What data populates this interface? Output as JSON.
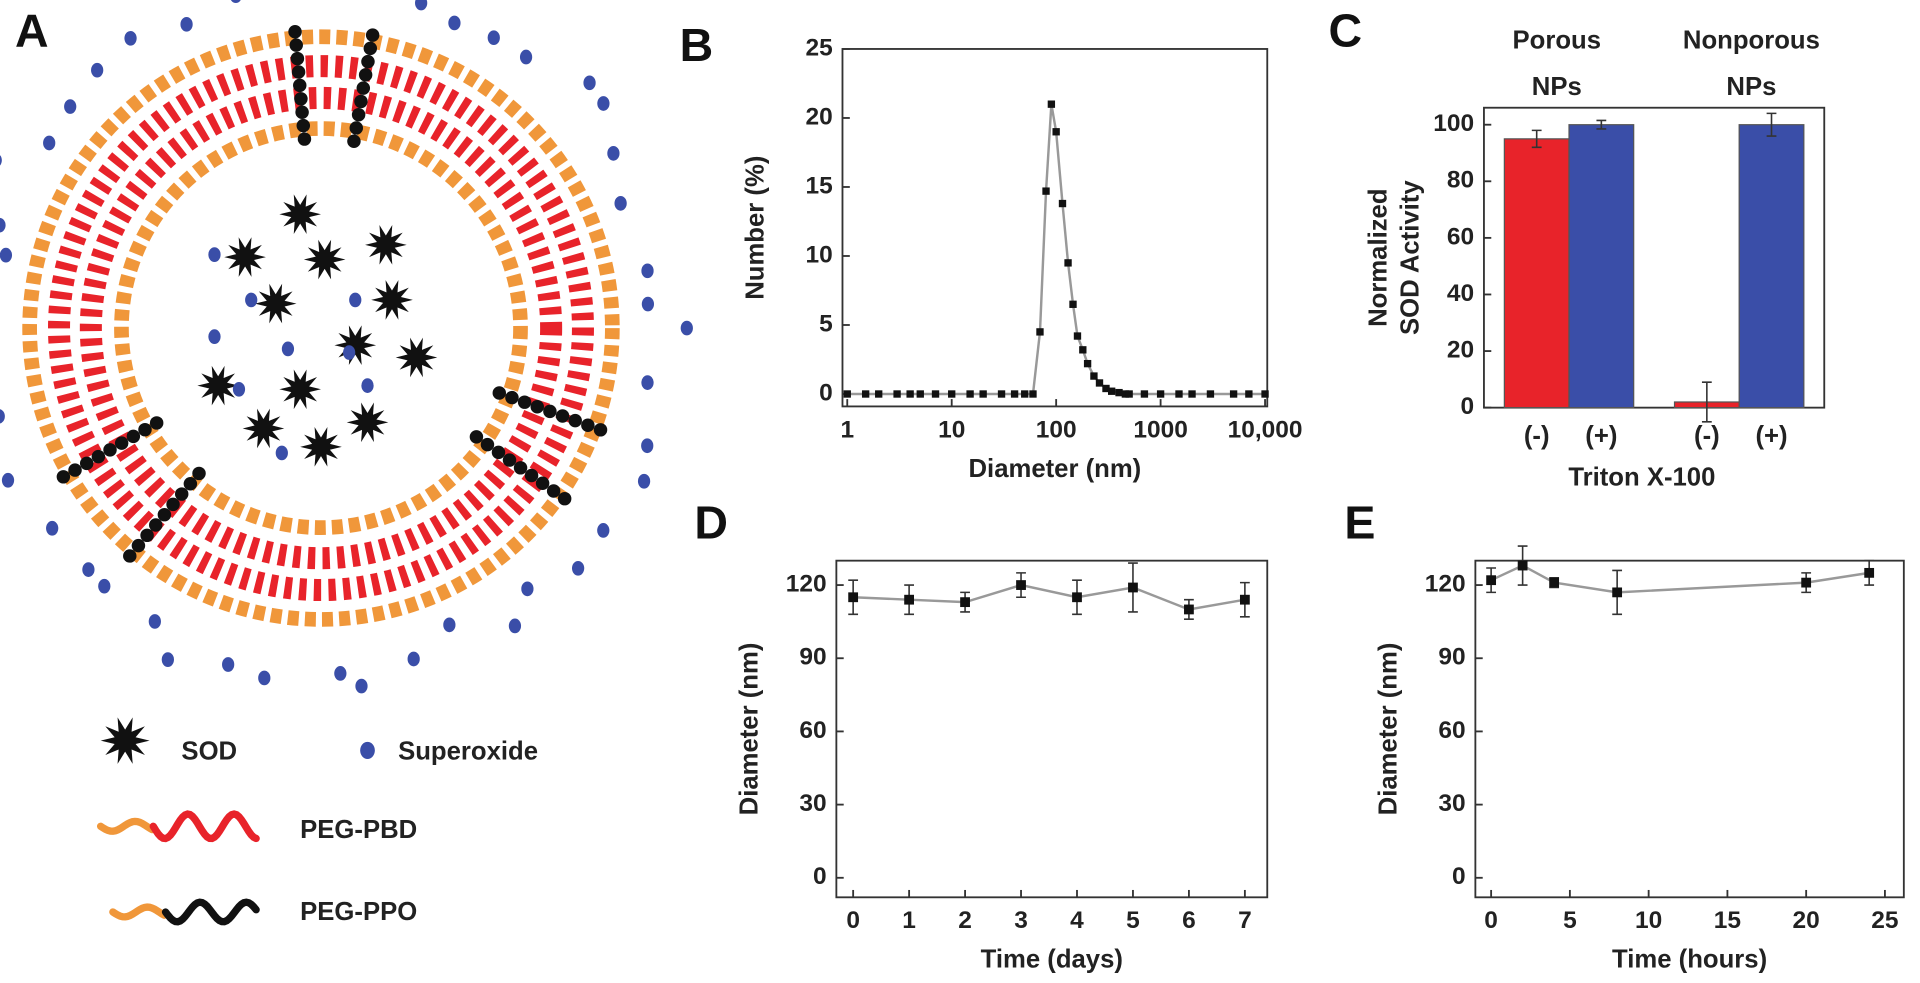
{
  "panel_labels": [
    "A",
    "B",
    "C",
    "D",
    "E"
  ],
  "diagram": {
    "legend": [
      "SOD",
      "Superoxide",
      "PEG-PBD",
      "PEG-PPO"
    ]
  },
  "chart_data": [
    {
      "type": "line",
      "xscale": "log",
      "color": "#999999",
      "marker_color": "#111111",
      "x": [
        1,
        1.5,
        2,
        3,
        4,
        5,
        7,
        10,
        15,
        20,
        30,
        40,
        50,
        60,
        70,
        80,
        90,
        100,
        115,
        130,
        145,
        160,
        180,
        200,
        230,
        260,
        300,
        340,
        400,
        460,
        500,
        700,
        1000,
        1500,
        2000,
        3000,
        5000,
        7000,
        10000
      ],
      "values": [
        0,
        0,
        0,
        0,
        0,
        0,
        0,
        0,
        0,
        0,
        0,
        0,
        0,
        0,
        4.5,
        14.7,
        21,
        19,
        13.8,
        9.5,
        6.5,
        4.2,
        3.2,
        2.2,
        1.3,
        0.8,
        0.4,
        0.2,
        0.1,
        0,
        0,
        0,
        0,
        0,
        0,
        0,
        0,
        0,
        0
      ],
      "xlim": [
        0.9,
        10500
      ],
      "xticks": [
        1,
        10,
        100,
        1000,
        {
          "value": 10000,
          "label": "10,000"
        }
      ],
      "ylim": [
        -0.9,
        25
      ],
      "yticks": [
        0,
        5,
        10,
        15,
        20,
        25
      ],
      "xlabel": "Diameter (nm)",
      "ylabel": "Number (%)"
    },
    {
      "type": "bar",
      "group_labels": [
        [
          "Porous",
          "NPs"
        ],
        [
          "Nonporous",
          "NPs"
        ]
      ],
      "categories": [
        "(-)",
        "(+)",
        "(-)",
        "(+)"
      ],
      "values": [
        95,
        100,
        2,
        100
      ],
      "errors": [
        3,
        1.5,
        7,
        4
      ],
      "colors": [
        "#e8232a",
        "#3a4ea8",
        "#e8232a",
        "#3a4ea8"
      ],
      "ylim": [
        0,
        106
      ],
      "yticks": [
        0,
        20,
        40,
        60,
        80,
        100
      ],
      "xlabel": "Triton X-100",
      "ylabel": [
        "Normalized",
        "SOD Activity"
      ]
    },
    {
      "type": "line",
      "color": "#999999",
      "marker_color": "#111111",
      "x": [
        0,
        1,
        2,
        3,
        4,
        5,
        6,
        7
      ],
      "values": [
        115,
        114,
        113,
        120,
        115,
        119,
        110,
        114
      ],
      "errors": [
        7,
        6,
        4,
        5,
        7,
        10,
        4,
        7
      ],
      "xlim": [
        -0.3,
        7.4
      ],
      "xticks": [
        0,
        1,
        2,
        3,
        4,
        5,
        6,
        7
      ],
      "ylim": [
        -8,
        130
      ],
      "yticks": [
        0,
        30,
        60,
        90,
        120
      ],
      "xlabel": "Time (days)",
      "ylabel": "Diameter (nm)"
    },
    {
      "type": "line",
      "color": "#999999",
      "marker_color": "#111111",
      "x": [
        0,
        2,
        4,
        8,
        20,
        24
      ],
      "values": [
        122,
        128,
        121,
        117,
        121,
        125
      ],
      "errors": [
        5,
        8,
        2,
        9,
        4,
        5
      ],
      "xlim": [
        -1,
        26.2
      ],
      "xticks": [
        0,
        5,
        10,
        15,
        20,
        25
      ],
      "ylim": [
        -8,
        130
      ],
      "yticks": [
        0,
        30,
        60,
        90,
        120
      ],
      "xlabel": "Time (hours)",
      "ylabel": "Diameter (nm)"
    }
  ]
}
